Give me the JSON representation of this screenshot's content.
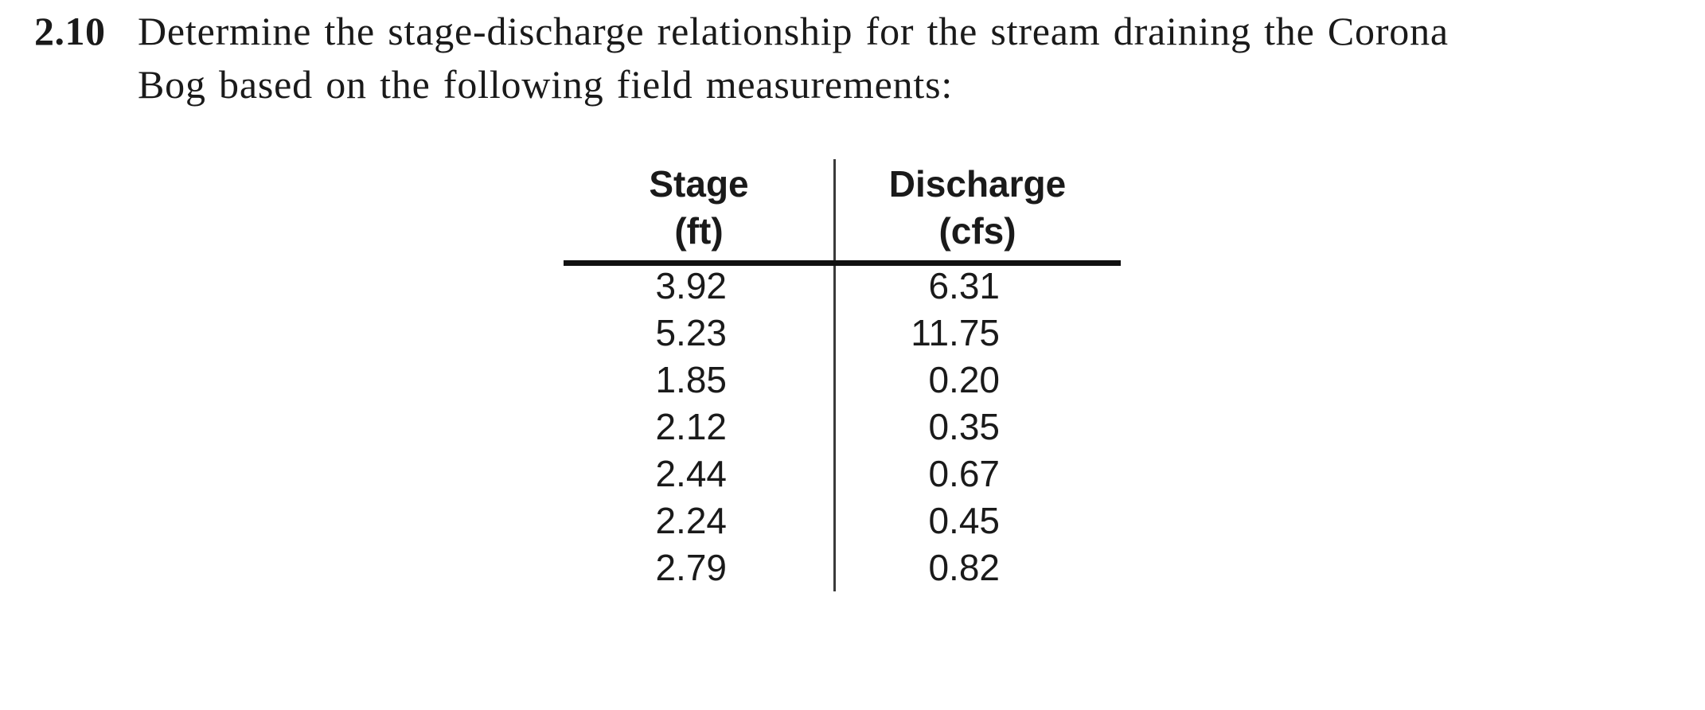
{
  "page": {
    "background_color": "#ffffff",
    "text_color": "#1a1a1a",
    "rule_color": "#111111"
  },
  "problem": {
    "number": "2.10",
    "full_text": "Determine the stage-discharge relationship for the stream draining the Corona Bog based on the following field measurements:",
    "line1": "Determine the stage-discharge relationship for the stream draining the Corona",
    "line2": "Bog based on the following field measurements:"
  },
  "table": {
    "columns": [
      {
        "name": "Stage",
        "unit": "(ft)"
      },
      {
        "name": "Discharge",
        "unit": "(cfs)"
      }
    ],
    "rows": [
      {
        "stage": "3.92",
        "discharge": "6.31"
      },
      {
        "stage": "5.23",
        "discharge": "11.75"
      },
      {
        "stage": "1.85",
        "discharge": "0.20"
      },
      {
        "stage": "2.12",
        "discharge": "0.35"
      },
      {
        "stage": "2.44",
        "discharge": "0.67"
      },
      {
        "stage": "2.24",
        "discharge": "0.45"
      },
      {
        "stage": "2.79",
        "discharge": "0.82"
      }
    ]
  }
}
